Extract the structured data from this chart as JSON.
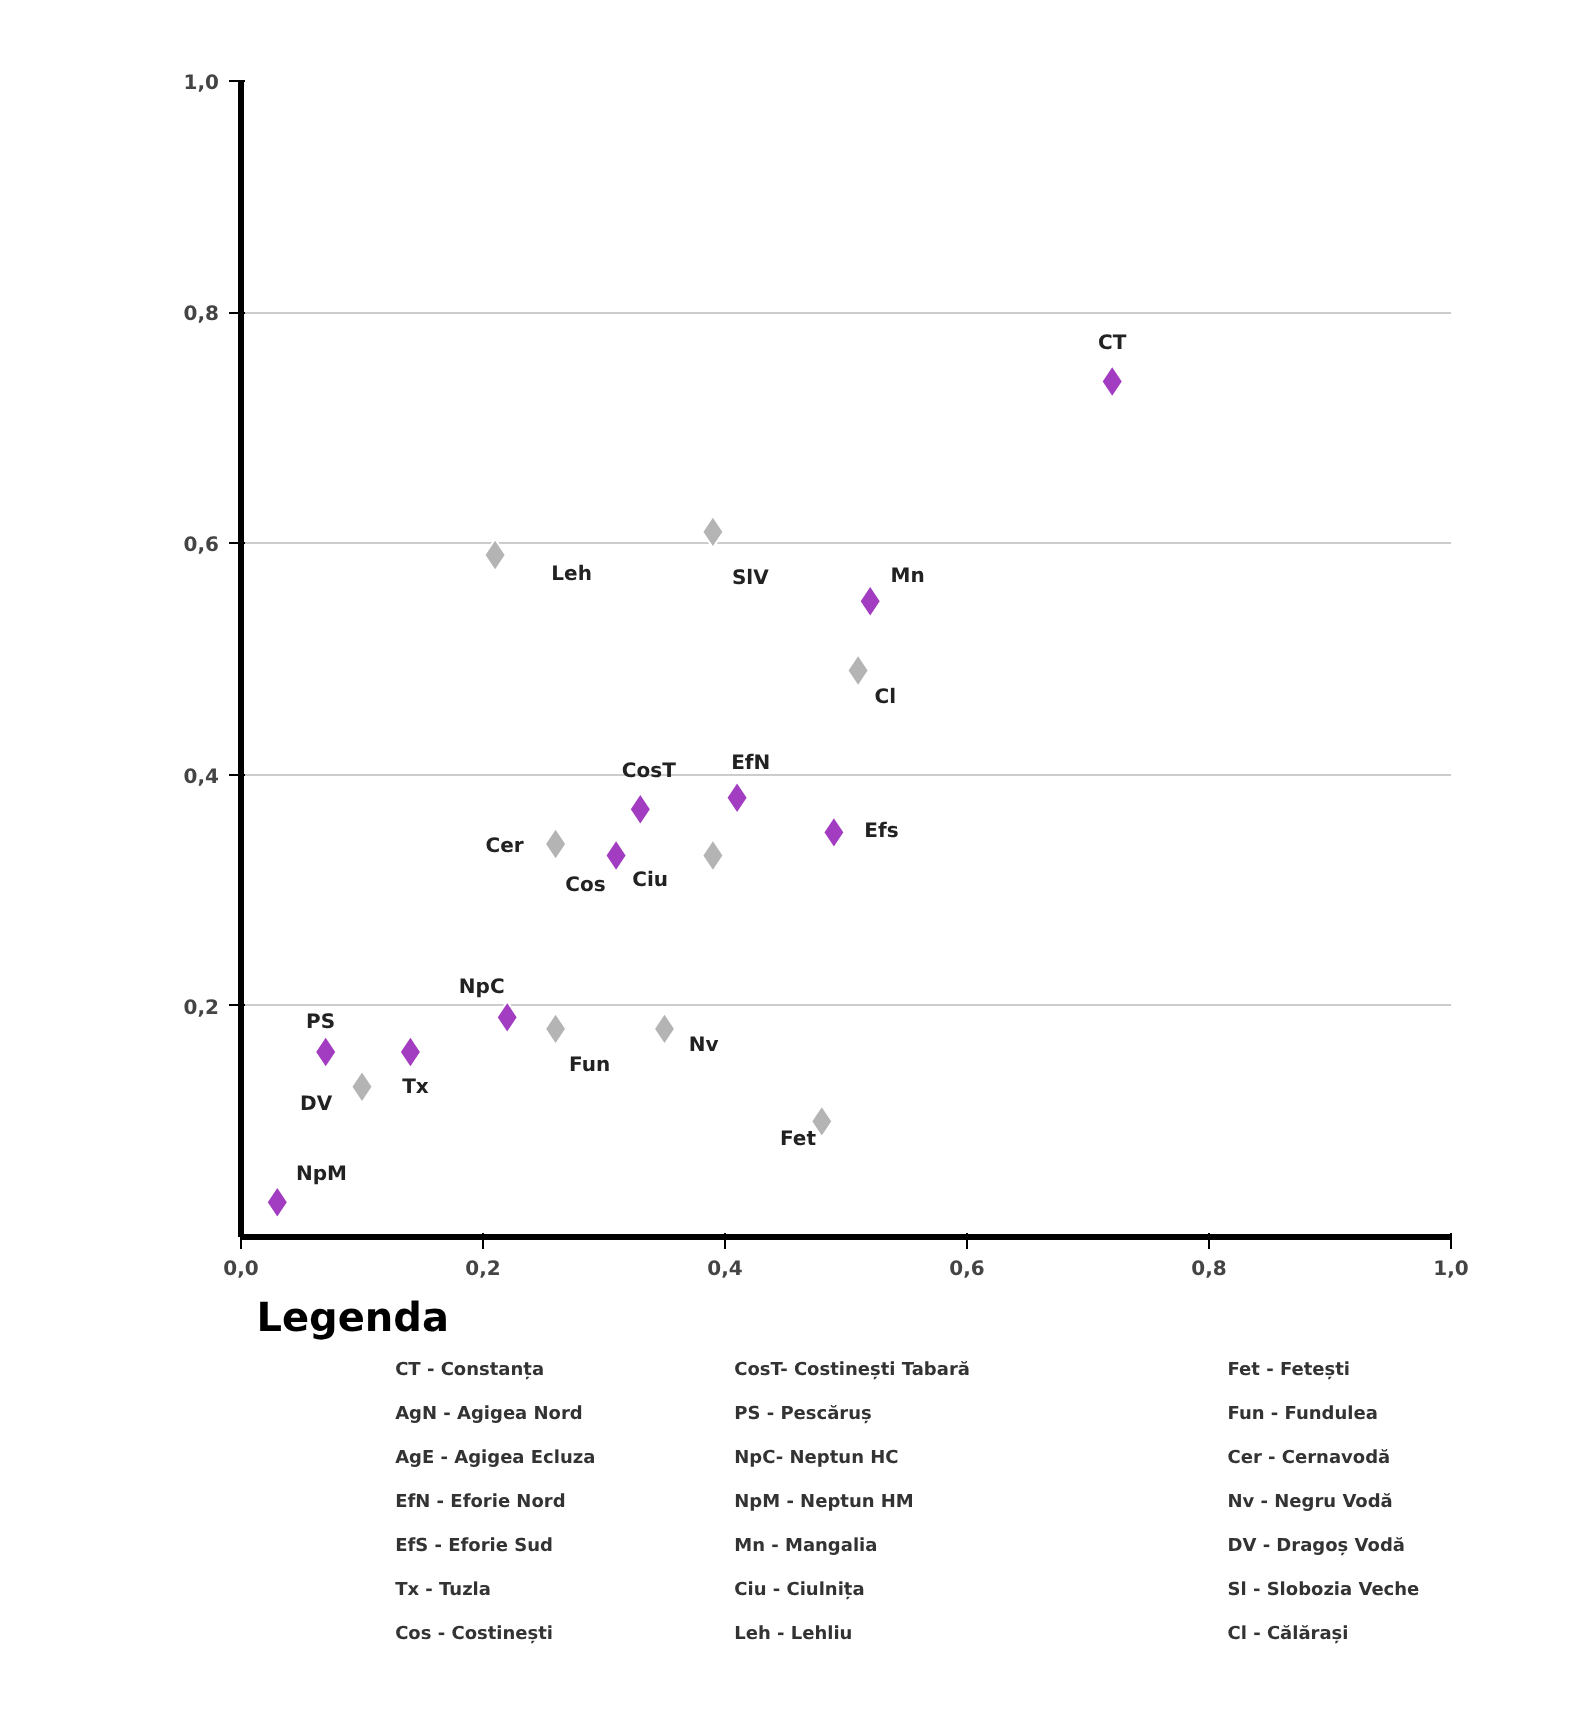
{
  "chart_data": {
    "type": "scatter",
    "marker": "diamond",
    "grid": "y",
    "xlim": [
      0,
      1.0
    ],
    "ylim": [
      0,
      1.0
    ],
    "xticks": [
      {
        "value": 0,
        "label": "0,0"
      },
      {
        "value": 0.2,
        "label": "0,2"
      },
      {
        "value": 0.4,
        "label": "0,4"
      },
      {
        "value": 0.6,
        "label": "0,6"
      },
      {
        "value": 0.8,
        "label": "0,8"
      },
      {
        "value": 1.0,
        "label": "1,0"
      }
    ],
    "yticks": [
      {
        "value": 0.2,
        "label": "0,2"
      },
      {
        "value": 0.4,
        "label": "0,4"
      },
      {
        "value": 0.6,
        "label": "0,6"
      },
      {
        "value": 0.8,
        "label": "0,8"
      },
      {
        "value": 1.0,
        "label": "1,0"
      }
    ],
    "series": [
      {
        "color": "#a23cc0",
        "x": [
          0.72,
          0.52,
          0.41,
          0.49,
          0.33,
          0.31,
          0.22,
          0.07,
          0.14,
          0.03
        ],
        "values": [
          0.74,
          0.55,
          0.38,
          0.35,
          0.37,
          0.33,
          0.19,
          0.16,
          0.16,
          0.03
        ]
      },
      {
        "color": "#b4b4b4",
        "x": [
          0.21,
          0.39,
          0.51,
          0.26,
          0.39,
          0.26,
          0.35,
          0.1,
          0.48
        ],
        "values": [
          0.59,
          0.61,
          0.49,
          0.34,
          0.33,
          0.18,
          0.18,
          0.13,
          0.1
        ]
      }
    ],
    "annotations": [
      {
        "text": "CT",
        "x": 0.72,
        "y": 0.74
      },
      {
        "text": "Leh",
        "x": 0.21,
        "y": 0.59
      },
      {
        "text": "SlV",
        "x": 0.39,
        "y": 0.61
      },
      {
        "text": "Mn",
        "x": 0.52,
        "y": 0.55
      },
      {
        "text": "Cl",
        "x": 0.51,
        "y": 0.49
      },
      {
        "text": "CosT",
        "x": 0.33,
        "y": 0.37
      },
      {
        "text": "EfN",
        "x": 0.41,
        "y": 0.38
      },
      {
        "text": "Efs",
        "x": 0.49,
        "y": 0.35
      },
      {
        "text": "Cer",
        "x": 0.26,
        "y": 0.34
      },
      {
        "text": "Cos",
        "x": 0.31,
        "y": 0.33
      },
      {
        "text": "Ciu",
        "x": 0.31,
        "y": 0.33
      },
      {
        "text": "NpC",
        "x": 0.22,
        "y": 0.19
      },
      {
        "text": "PS",
        "x": 0.07,
        "y": 0.16
      },
      {
        "text": "DV",
        "x": 0.1,
        "y": 0.13
      },
      {
        "text": "Tx",
        "x": 0.14,
        "y": 0.16
      },
      {
        "text": "Fun",
        "x": 0.26,
        "y": 0.18
      },
      {
        "text": "Nv",
        "x": 0.35,
        "y": 0.18
      },
      {
        "text": "NpM",
        "x": 0.03,
        "y": 0.03
      },
      {
        "text": "Fet",
        "x": 0.48,
        "y": 0.1
      },
      "Legenda",
      "CT - Constanța",
      "AgN - Agigea Nord",
      "AgE - Agigea Ecluza",
      "EfN - Eforie Nord",
      "EfS - Eforie Sud",
      "Tx - Tuzla",
      "Cos - Costinești",
      "CosT- Costinești Tabară",
      "PS - Pescăruș",
      "NpC- Neptun HC",
      "NpM - Neptun HM",
      "Mn - Mangalia",
      "Ciu - Ciulnița",
      "Leh - Lehliu",
      "Fet - Fetești",
      "Fun - Fundulea",
      "Cer - Cernavodă",
      "Nv - Negru Vodă",
      "DV - Dragoș Vodă",
      "Sl - Slobozia Veche",
      "Cl - Călărași"
    ]
  }
}
